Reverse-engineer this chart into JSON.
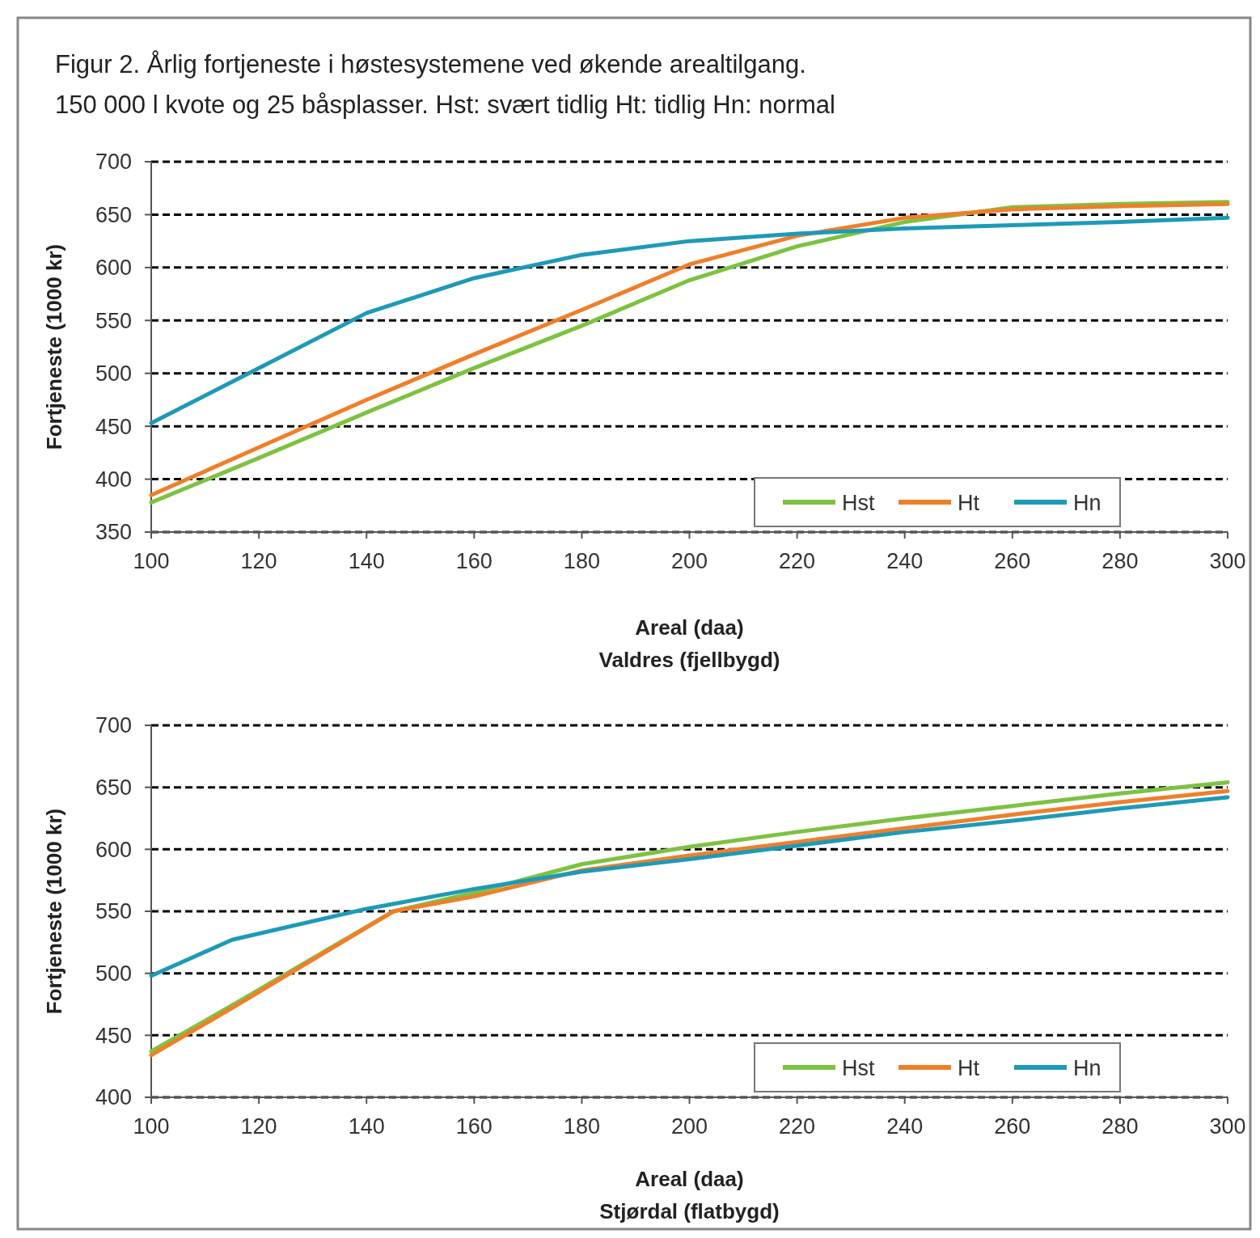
{
  "chart_data": [
    {
      "type": "line",
      "title": "Figur 2. Årlig fortjeneste i høstesystemene ved økende arealtilgang.",
      "subtitle": "150 000 l kvote og 25 båsplasser. Hst: svært tidlig Ht: tidlig Hn: normal",
      "xlabel": "Areal (daa)",
      "ylabel": "Fortjeneste (1000 kr)",
      "annotations": [
        "Valdres (fjellbygd)"
      ],
      "x": [
        100,
        120,
        140,
        160,
        180,
        200,
        220,
        240,
        260,
        280,
        300
      ],
      "series": [
        {
          "name": "Hst",
          "color": "#7dc242",
          "values": [
            378,
            420,
            463,
            505,
            545,
            588,
            620,
            643,
            657,
            660,
            662
          ]
        },
        {
          "name": "Ht",
          "color": "#f07f2a",
          "values": [
            385,
            430,
            475,
            518,
            560,
            603,
            630,
            647,
            655,
            658,
            660
          ]
        },
        {
          "name": "Hn",
          "color": "#1e9ab8",
          "values": [
            453,
            505,
            557,
            590,
            612,
            625,
            632,
            637,
            640,
            643,
            647
          ]
        }
      ],
      "xlim": [
        100,
        300
      ],
      "xticks": [
        100,
        120,
        140,
        160,
        180,
        200,
        220,
        240,
        260,
        280,
        300
      ],
      "ylim": [
        350,
        700
      ],
      "yticks": [
        350,
        400,
        450,
        500,
        550,
        600,
        650,
        700
      ],
      "grid": "y",
      "legend": "bottom right",
      "marker": "none",
      "line_style": "solid"
    },
    {
      "type": "line",
      "xlabel": "Areal (daa)",
      "ylabel": "Fortjeneste (1000 kr)",
      "annotations": [
        "Stjørdal (flatbygd)"
      ],
      "series": [
        {
          "name": "Hst",
          "color": "#7dc242",
          "x": [
            100,
            115,
            145,
            160,
            180,
            200,
            220,
            240,
            260,
            280,
            300
          ],
          "values": [
            437,
            474,
            550,
            565,
            588,
            602,
            614,
            625,
            635,
            645,
            654
          ]
        },
        {
          "name": "Ht",
          "color": "#f07f2a",
          "x": [
            100,
            115,
            145,
            160,
            180,
            200,
            220,
            240,
            260,
            280,
            300
          ],
          "values": [
            434,
            472,
            550,
            562,
            583,
            595,
            606,
            617,
            628,
            638,
            647
          ]
        },
        {
          "name": "Hn",
          "color": "#1e9ab8",
          "x": [
            100,
            115,
            140,
            160,
            180,
            200,
            220,
            240,
            260,
            280,
            300
          ],
          "values": [
            498,
            527,
            552,
            568,
            582,
            592,
            603,
            614,
            623,
            633,
            642
          ]
        }
      ],
      "xlim": [
        100,
        300
      ],
      "xticks": [
        100,
        120,
        140,
        160,
        180,
        200,
        220,
        240,
        260,
        280,
        300
      ],
      "ylim": [
        400,
        700
      ],
      "yticks": [
        400,
        450,
        500,
        550,
        600,
        650,
        700
      ],
      "grid": "y",
      "legend": "bottom right",
      "marker": "none",
      "line_style": "solid"
    }
  ]
}
